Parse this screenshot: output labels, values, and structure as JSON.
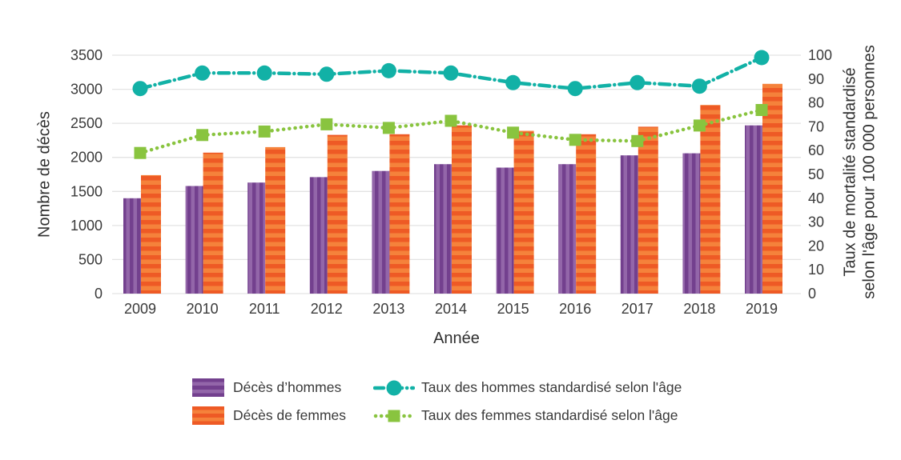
{
  "background": "#ffffff",
  "chart_data": {
    "type": "bar+line combo",
    "title": "",
    "xlabel": "Année",
    "ylabel_left": "Nombre de décès",
    "ylabel_right": [
      "Taux de mortalité standardisé",
      "selon l'âge pour 100 000 personnes"
    ],
    "categories": [
      "2009",
      "2010",
      "2011",
      "2012",
      "2013",
      "2014",
      "2015",
      "2016",
      "2017",
      "2018",
      "2019"
    ],
    "bar_series": [
      {
        "name": "Décès d’hommes",
        "axis": "left",
        "values": [
          1400,
          1580,
          1630,
          1710,
          1800,
          1900,
          1850,
          1900,
          2030,
          2060,
          2470
        ],
        "color_dark": "#73408e",
        "color_light": "#9366a9",
        "stripes": "vertical"
      },
      {
        "name": "Décès de femmes",
        "axis": "left",
        "values": [
          1740,
          2070,
          2150,
          2330,
          2340,
          2470,
          2390,
          2340,
          2450,
          2770,
          3080
        ],
        "color_dark": "#ee5a25",
        "color_light": "#f5823b",
        "stripes": "horizontal"
      }
    ],
    "line_series": [
      {
        "name": "Taux des hommes standardisé selon l'âge",
        "axis": "right",
        "values": [
          86,
          92.5,
          92.5,
          92,
          93.5,
          92.5,
          88.5,
          86,
          88.5,
          87,
          99
        ],
        "color": "#12b1a6",
        "marker": "circle",
        "dash": "dash-dot"
      },
      {
        "name": "Taux des femmes standardisé selon l'âge",
        "axis": "right",
        "values": [
          59,
          66.5,
          68,
          71,
          69.5,
          72.5,
          67.5,
          64.5,
          64,
          70.5,
          77
        ],
        "color": "#89c43f",
        "marker": "square",
        "dash": "dot"
      }
    ],
    "left_axis": {
      "min": 0,
      "max": 3500,
      "ticks": [
        0,
        500,
        1000,
        1500,
        2000,
        2500,
        3000,
        3500
      ]
    },
    "right_axis": {
      "min": 0,
      "max": 100,
      "ticks": [
        0,
        10,
        20,
        30,
        40,
        50,
        60,
        70,
        80,
        90,
        100
      ]
    },
    "grid": "horizontal",
    "grid_color": "#e3e3e3",
    "legend_position": "bottom"
  }
}
